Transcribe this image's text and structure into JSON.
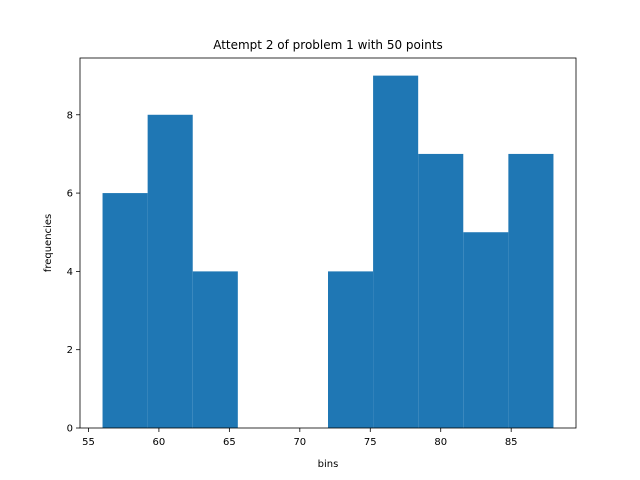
{
  "chart_data": {
    "type": "bar",
    "title": "Attempt 2 of problem 1 with 50 points",
    "xlabel": "bins",
    "ylabel": "frequencies",
    "bin_edges": [
      56.0,
      59.2,
      62.4,
      65.6,
      68.8,
      72.0,
      75.2,
      78.4,
      81.6,
      84.8,
      88.0
    ],
    "values": [
      6,
      8,
      4,
      0,
      0,
      4,
      9,
      7,
      5,
      7
    ],
    "xlim": [
      54.4,
      89.6
    ],
    "ylim": [
      0,
      9.45
    ],
    "xticks": [
      55,
      60,
      65,
      70,
      75,
      80,
      85
    ],
    "yticks": [
      0,
      2,
      4,
      6,
      8
    ],
    "grid": false,
    "bar_color": "#1f77b4"
  }
}
